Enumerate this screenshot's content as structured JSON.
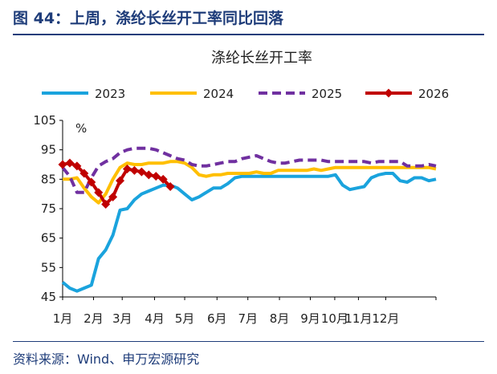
{
  "figure": {
    "title": "图 44：上周，涤纶长丝开工率同比回落",
    "source": "资料来源：Wind、申万宏源研究"
  },
  "chart_data": {
    "type": "line",
    "title": "涤纶长丝开工率",
    "unit": "%",
    "ylim": [
      45,
      105
    ],
    "yticks": [
      45,
      55,
      65,
      75,
      85,
      95,
      105
    ],
    "x_domain_weeks": [
      0,
      52
    ],
    "xticks": [
      {
        "label": "1月",
        "pos": 0
      },
      {
        "label": "2月",
        "pos": 4.3
      },
      {
        "label": "3月",
        "pos": 8.3
      },
      {
        "label": "4月",
        "pos": 12.8
      },
      {
        "label": "5月",
        "pos": 17.0
      },
      {
        "label": "6月",
        "pos": 21.5
      },
      {
        "label": "7月",
        "pos": 25.8
      },
      {
        "label": "8月",
        "pos": 30.2
      },
      {
        "label": "9月",
        "pos": 34.5
      },
      {
        "label": "10月",
        "pos": 37.9
      },
      {
        "label": "11月",
        "pos": 41.2
      },
      {
        "label": "12月",
        "pos": 45.0
      }
    ],
    "legend": "top",
    "grid": false,
    "series": [
      {
        "name": "2023",
        "color": "#1aa3dd",
        "dash": "solid",
        "marker": "none",
        "values": [
          50,
          48,
          47,
          48,
          49,
          58,
          61,
          66,
          74.5,
          75,
          78,
          80,
          81,
          82,
          83,
          83,
          82,
          80,
          78,
          79,
          80.5,
          82,
          82,
          83.5,
          85.5,
          86,
          86,
          86,
          86,
          86,
          86,
          86,
          86,
          86,
          86,
          86,
          86,
          86,
          86.5,
          83,
          81.5,
          82,
          82.5,
          85.5,
          86.5,
          87,
          87,
          84.5,
          84,
          85.5,
          85.5,
          84.5,
          85
        ]
      },
      {
        "name": "2024",
        "color": "#ffbf00",
        "dash": "solid",
        "marker": "none",
        "values": [
          85,
          85,
          85.5,
          82,
          79,
          77,
          80,
          85,
          89,
          90.5,
          90,
          90,
          90.5,
          90.5,
          90.5,
          91,
          91,
          90.5,
          89,
          86.5,
          86,
          86.5,
          86.5,
          87,
          87,
          87,
          87,
          87.5,
          87,
          87,
          88,
          88,
          88,
          88,
          88,
          88.5,
          88,
          88.5,
          89,
          89,
          89,
          89,
          89,
          89,
          89,
          89,
          89,
          89,
          89,
          89,
          89,
          89,
          88.5
        ]
      },
      {
        "name": "2025",
        "color": "#7030a0",
        "dash": "dashed",
        "marker": "none",
        "values": [
          89,
          86,
          80.5,
          80.5,
          85.5,
          89.5,
          91,
          92,
          94,
          95,
          95.5,
          95.5,
          95.5,
          95,
          94,
          93,
          92,
          91.5,
          90,
          89.5,
          89.5,
          90,
          90.5,
          91,
          91,
          92,
          92.5,
          93,
          92,
          91,
          90.5,
          90.5,
          91,
          91.5,
          91.5,
          91.5,
          91.5,
          91,
          91,
          91,
          91,
          91,
          91,
          90.5,
          91,
          91,
          91,
          91,
          89.5,
          89.5,
          89.5,
          90,
          89.5
        ]
      },
      {
        "name": "2026",
        "color": "#c00000",
        "dash": "solid",
        "marker": "diamond",
        "values": [
          90,
          90.5,
          89.5,
          87,
          84,
          80.5,
          76.5,
          79,
          84.5,
          88.5,
          88,
          87.5,
          86.5,
          86,
          85,
          82.5
        ]
      }
    ]
  }
}
